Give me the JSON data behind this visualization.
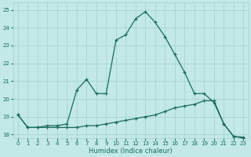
{
  "title": "",
  "xlabel": "Humidex (Indice chaleur)",
  "ylabel": "",
  "background_color": "#c2e8e8",
  "grid_color": "#a8d4d4",
  "line_color": "#1a6b5a",
  "xlim": [
    -0.5,
    23.5
  ],
  "ylim": [
    17.8,
    25.4
  ],
  "yticks": [
    18,
    19,
    20,
    21,
    22,
    23,
    24,
    25
  ],
  "xticks": [
    0,
    1,
    2,
    3,
    4,
    5,
    6,
    7,
    8,
    9,
    10,
    11,
    12,
    13,
    14,
    15,
    16,
    17,
    18,
    19,
    20,
    21,
    22,
    23
  ],
  "line1_x": [
    0,
    1,
    2,
    3,
    4,
    5,
    6,
    7,
    8,
    9,
    10,
    11,
    12,
    13,
    14,
    15,
    16,
    17,
    18,
    19,
    20,
    21,
    22,
    23
  ],
  "line1_y": [
    19.1,
    18.4,
    18.4,
    18.5,
    18.5,
    18.6,
    20.5,
    21.1,
    20.3,
    20.3,
    23.3,
    23.6,
    24.5,
    24.9,
    24.3,
    23.5,
    22.5,
    21.5,
    20.3,
    20.3,
    19.8,
    18.6,
    17.9,
    17.8
  ],
  "line2_x": [
    0,
    1,
    2,
    3,
    4,
    5,
    6,
    7,
    8,
    9,
    10,
    11,
    12,
    13,
    14,
    15,
    16,
    17,
    18,
    19,
    20,
    21,
    22,
    23
  ],
  "line2_y": [
    19.1,
    18.4,
    18.4,
    18.4,
    18.4,
    18.4,
    18.4,
    18.5,
    18.5,
    18.6,
    18.7,
    18.8,
    18.9,
    19.0,
    19.1,
    19.3,
    19.5,
    19.6,
    19.7,
    19.9,
    19.9,
    18.6,
    17.9,
    17.85
  ],
  "xlabel_fontsize": 6,
  "tick_fontsize": 5
}
